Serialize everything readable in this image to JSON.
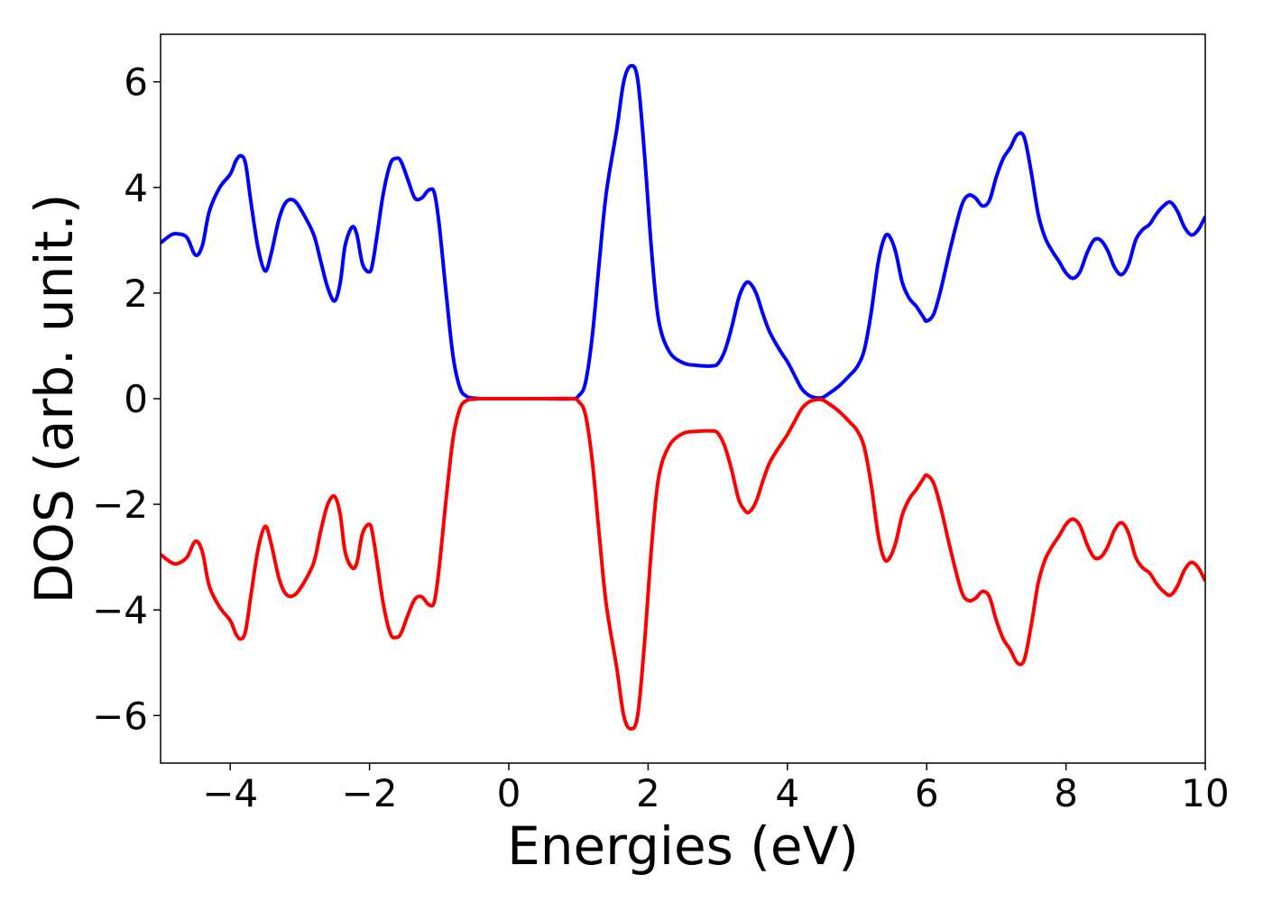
{
  "chart_data": {
    "type": "line",
    "title": "",
    "xlabel": "Energies (eV)",
    "ylabel": "DOS (arb. unit.)",
    "xlim": [
      -5,
      10
    ],
    "ylim": [
      -6.9,
      6.9
    ],
    "xticks": [
      -4,
      -2,
      0,
      2,
      4,
      6,
      8,
      10
    ],
    "yticks": [
      -6,
      -4,
      -2,
      0,
      2,
      4,
      6
    ],
    "xtick_labels": [
      "−4",
      "−2",
      "0",
      "2",
      "4",
      "6",
      "8",
      "10"
    ],
    "ytick_labels": [
      "−6",
      "−4",
      "−2",
      "0",
      "2",
      "4",
      "6"
    ],
    "grid": false,
    "legend": "none",
    "series": [
      {
        "color": "#0000ff",
        "x": [
          -5.0,
          -4.85,
          -4.75,
          -4.62,
          -4.5,
          -4.4,
          -4.3,
          -4.15,
          -4.0,
          -3.92,
          -3.85,
          -3.78,
          -3.7,
          -3.6,
          -3.5,
          -3.42,
          -3.3,
          -3.2,
          -3.08,
          -2.95,
          -2.8,
          -2.7,
          -2.6,
          -2.5,
          -2.42,
          -2.35,
          -2.25,
          -2.18,
          -2.1,
          -2.0,
          -1.95,
          -1.88,
          -1.8,
          -1.7,
          -1.62,
          -1.55,
          -1.45,
          -1.35,
          -1.25,
          -1.15,
          -1.07,
          -1.0,
          -0.9,
          -0.8,
          -0.7,
          -0.6,
          -0.5,
          -0.4,
          -0.2,
          0.0,
          0.5,
          0.9,
          1.0,
          1.1,
          1.2,
          1.3,
          1.4,
          1.55,
          1.65,
          1.75,
          1.85,
          1.95,
          2.05,
          2.15,
          2.3,
          2.5,
          2.7,
          2.9,
          3.0,
          3.1,
          3.2,
          3.3,
          3.38,
          3.45,
          3.55,
          3.65,
          3.75,
          3.9,
          4.0,
          4.1,
          4.2,
          4.3,
          4.4,
          4.5,
          4.6,
          4.75,
          4.9,
          5.0,
          5.1,
          5.2,
          5.3,
          5.38,
          5.45,
          5.55,
          5.65,
          5.75,
          5.85,
          5.95,
          6.0,
          6.1,
          6.2,
          6.35,
          6.5,
          6.6,
          6.7,
          6.8,
          6.9,
          7.0,
          7.1,
          7.2,
          7.3,
          7.4,
          7.5,
          7.6,
          7.7,
          7.8,
          7.9,
          8.0,
          8.1,
          8.2,
          8.3,
          8.4,
          8.5,
          8.6,
          8.7,
          8.8,
          8.9,
          9.0,
          9.1,
          9.2,
          9.3,
          9.4,
          9.5,
          9.6,
          9.7,
          9.8,
          9.9,
          10.0
        ],
        "y": [
          2.95,
          3.1,
          3.12,
          3.05,
          2.72,
          2.9,
          3.55,
          4.0,
          4.25,
          4.5,
          4.6,
          4.45,
          3.7,
          2.85,
          2.42,
          2.7,
          3.4,
          3.72,
          3.75,
          3.5,
          3.1,
          2.6,
          2.1,
          1.85,
          2.2,
          2.9,
          3.25,
          3.1,
          2.55,
          2.4,
          2.6,
          3.2,
          3.9,
          4.45,
          4.55,
          4.5,
          4.15,
          3.8,
          3.8,
          3.95,
          3.9,
          3.3,
          2.0,
          0.8,
          0.2,
          0.04,
          0.01,
          0.0,
          0.0,
          0.0,
          0.0,
          0.0,
          0.05,
          0.3,
          1.2,
          2.6,
          3.9,
          5.1,
          6.0,
          6.3,
          6.05,
          4.6,
          2.8,
          1.5,
          0.9,
          0.68,
          0.63,
          0.62,
          0.66,
          0.9,
          1.35,
          1.9,
          2.15,
          2.2,
          2.0,
          1.6,
          1.25,
          0.9,
          0.7,
          0.45,
          0.2,
          0.07,
          0.02,
          0.02,
          0.1,
          0.25,
          0.45,
          0.6,
          0.9,
          1.6,
          2.55,
          3.0,
          3.1,
          2.8,
          2.2,
          1.9,
          1.75,
          1.55,
          1.47,
          1.6,
          2.05,
          2.9,
          3.65,
          3.85,
          3.8,
          3.65,
          3.75,
          4.2,
          4.55,
          4.75,
          5.0,
          4.95,
          4.3,
          3.5,
          3.05,
          2.8,
          2.6,
          2.38,
          2.28,
          2.4,
          2.75,
          3.0,
          3.0,
          2.8,
          2.48,
          2.35,
          2.55,
          3.0,
          3.2,
          3.3,
          3.5,
          3.65,
          3.72,
          3.55,
          3.25,
          3.1,
          3.2,
          3.45
        ]
      },
      {
        "color": "#ff0000",
        "x": [
          -5.0,
          -4.85,
          -4.75,
          -4.62,
          -4.5,
          -4.4,
          -4.3,
          -4.15,
          -4.0,
          -3.92,
          -3.85,
          -3.78,
          -3.7,
          -3.6,
          -3.5,
          -3.42,
          -3.3,
          -3.2,
          -3.08,
          -2.95,
          -2.8,
          -2.7,
          -2.6,
          -2.5,
          -2.42,
          -2.35,
          -2.25,
          -2.18,
          -2.1,
          -2.0,
          -1.95,
          -1.88,
          -1.8,
          -1.7,
          -1.62,
          -1.55,
          -1.45,
          -1.35,
          -1.25,
          -1.15,
          -1.07,
          -1.0,
          -0.9,
          -0.8,
          -0.7,
          -0.6,
          -0.5,
          -0.4,
          -0.2,
          0.0,
          0.5,
          0.9,
          1.0,
          1.1,
          1.2,
          1.3,
          1.4,
          1.55,
          1.65,
          1.75,
          1.85,
          1.95,
          2.05,
          2.15,
          2.3,
          2.5,
          2.7,
          2.9,
          3.0,
          3.1,
          3.2,
          3.3,
          3.38,
          3.45,
          3.55,
          3.65,
          3.75,
          3.9,
          4.0,
          4.1,
          4.2,
          4.3,
          4.4,
          4.5,
          4.6,
          4.75,
          4.9,
          5.0,
          5.1,
          5.2,
          5.3,
          5.38,
          5.45,
          5.55,
          5.65,
          5.75,
          5.85,
          5.95,
          6.0,
          6.1,
          6.2,
          6.35,
          6.5,
          6.6,
          6.7,
          6.8,
          6.9,
          7.0,
          7.1,
          7.2,
          7.3,
          7.4,
          7.5,
          7.6,
          7.7,
          7.8,
          7.9,
          8.0,
          8.1,
          8.2,
          8.3,
          8.4,
          8.5,
          8.6,
          8.7,
          8.8,
          8.9,
          9.0,
          9.1,
          9.2,
          9.3,
          9.4,
          9.5,
          9.6,
          9.7,
          9.8,
          9.9,
          10.0
        ],
        "y": [
          -2.95,
          -3.1,
          -3.12,
          -3.0,
          -2.7,
          -2.9,
          -3.55,
          -3.95,
          -4.2,
          -4.45,
          -4.55,
          -4.4,
          -3.7,
          -2.85,
          -2.42,
          -2.7,
          -3.4,
          -3.7,
          -3.72,
          -3.5,
          -3.1,
          -2.5,
          -2.0,
          -1.85,
          -2.2,
          -2.9,
          -3.2,
          -3.1,
          -2.55,
          -2.38,
          -2.6,
          -3.2,
          -3.9,
          -4.45,
          -4.52,
          -4.45,
          -4.1,
          -3.8,
          -3.75,
          -3.9,
          -3.85,
          -3.2,
          -1.9,
          -0.75,
          -0.18,
          -0.03,
          -0.01,
          0.0,
          0.0,
          0.0,
          0.0,
          0.0,
          -0.05,
          -0.3,
          -1.2,
          -2.6,
          -3.9,
          -5.1,
          -6.0,
          -6.25,
          -6.0,
          -4.6,
          -2.8,
          -1.5,
          -0.9,
          -0.66,
          -0.62,
          -0.61,
          -0.65,
          -0.9,
          -1.35,
          -1.9,
          -2.1,
          -2.15,
          -1.95,
          -1.55,
          -1.2,
          -0.88,
          -0.68,
          -0.44,
          -0.2,
          -0.07,
          -0.02,
          -0.02,
          -0.1,
          -0.25,
          -0.45,
          -0.6,
          -0.9,
          -1.6,
          -2.55,
          -3.0,
          -3.05,
          -2.75,
          -2.2,
          -1.9,
          -1.72,
          -1.52,
          -1.45,
          -1.6,
          -2.05,
          -2.9,
          -3.65,
          -3.82,
          -3.78,
          -3.65,
          -3.75,
          -4.2,
          -4.55,
          -4.75,
          -5.0,
          -4.95,
          -4.3,
          -3.5,
          -3.05,
          -2.8,
          -2.6,
          -2.38,
          -2.28,
          -2.4,
          -2.75,
          -3.0,
          -3.0,
          -2.8,
          -2.48,
          -2.35,
          -2.55,
          -3.0,
          -3.2,
          -3.3,
          -3.5,
          -3.65,
          -3.72,
          -3.55,
          -3.25,
          -3.1,
          -3.2,
          -3.45
        ]
      }
    ]
  }
}
